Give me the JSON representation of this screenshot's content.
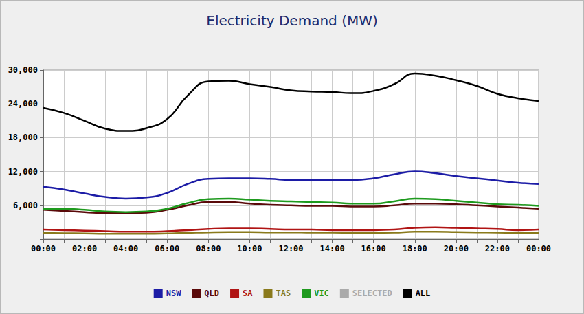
{
  "chart_data": {
    "type": "line",
    "title": "Electricity Demand (MW)",
    "categories": [
      "00:00",
      null,
      "02:00",
      null,
      "04:00",
      null,
      "06:00",
      null,
      "08:00",
      null,
      "10:00",
      null,
      "12:00",
      null,
      "14:00",
      null,
      "16:00",
      null,
      "18:00",
      null,
      "20:00",
      null,
      "22:00",
      null,
      "00:00"
    ],
    "series": [
      {
        "name": "NSW",
        "color": "#1c1ca6",
        "values": [
          9300,
          8800,
          8100,
          7500,
          7200,
          7400,
          8200,
          9800,
          10700,
          10800,
          10800,
          10700,
          10500,
          10500,
          10500,
          10500,
          10800,
          11500,
          12000,
          11700,
          11200,
          10800,
          10400,
          10000,
          9800
        ]
      },
      {
        "name": "QLD",
        "color": "#5a0a0a",
        "values": [
          5200,
          5000,
          4800,
          4600,
          4600,
          4700,
          5200,
          6000,
          6600,
          6600,
          6300,
          6100,
          6000,
          5900,
          5900,
          5800,
          5800,
          6000,
          6300,
          6300,
          6200,
          6000,
          5800,
          5600,
          5400
        ]
      },
      {
        "name": "SA",
        "color": "#b01414",
        "values": [
          1700,
          1600,
          1500,
          1400,
          1300,
          1300,
          1400,
          1600,
          1800,
          1900,
          1900,
          1800,
          1700,
          1700,
          1600,
          1600,
          1600,
          1700,
          2000,
          2100,
          2000,
          1900,
          1800,
          1600,
          1700
        ]
      },
      {
        "name": "TAS",
        "color": "#8a7a1c",
        "values": [
          1100,
          1050,
          1000,
          950,
          950,
          950,
          1000,
          1100,
          1200,
          1250,
          1250,
          1200,
          1200,
          1150,
          1150,
          1100,
          1100,
          1150,
          1300,
          1300,
          1250,
          1200,
          1150,
          1100,
          1100
        ]
      },
      {
        "name": "VIC",
        "color": "#1e9a1e",
        "values": [
          5400,
          5400,
          5200,
          4900,
          4800,
          4900,
          5400,
          6400,
          7100,
          7200,
          7000,
          6800,
          6700,
          6600,
          6500,
          6300,
          6300,
          6700,
          7200,
          7100,
          6800,
          6500,
          6200,
          6100,
          5900
        ]
      },
      {
        "name": "SELECTED",
        "color": "#333333",
        "values": [
          null,
          null,
          null,
          null,
          null,
          null,
          null,
          null,
          null,
          null,
          null,
          null,
          null,
          null,
          null,
          null,
          null,
          null,
          null,
          null,
          null,
          null,
          null,
          null,
          null
        ]
      },
      {
        "name": "ALL",
        "color": "#000000",
        "values": [
          23300,
          22400,
          21000,
          19600,
          19200,
          19700,
          21300,
          25500,
          28000,
          28100,
          27500,
          27000,
          26400,
          26200,
          26100,
          25900,
          26300,
          27500,
          29400,
          29000,
          28200,
          27200,
          25800,
          25000,
          24500
        ]
      }
    ],
    "ylim": [
      0,
      30000
    ],
    "yticks": [
      {
        "value": 6000,
        "label": "6,000"
      },
      {
        "value": 12000,
        "label": "12,000"
      },
      {
        "value": 18000,
        "label": "18,000"
      },
      {
        "value": 24000,
        "label": "24,000"
      },
      {
        "value": 30000,
        "label": "30,000"
      }
    ],
    "grid": true,
    "legend": "bottom"
  }
}
